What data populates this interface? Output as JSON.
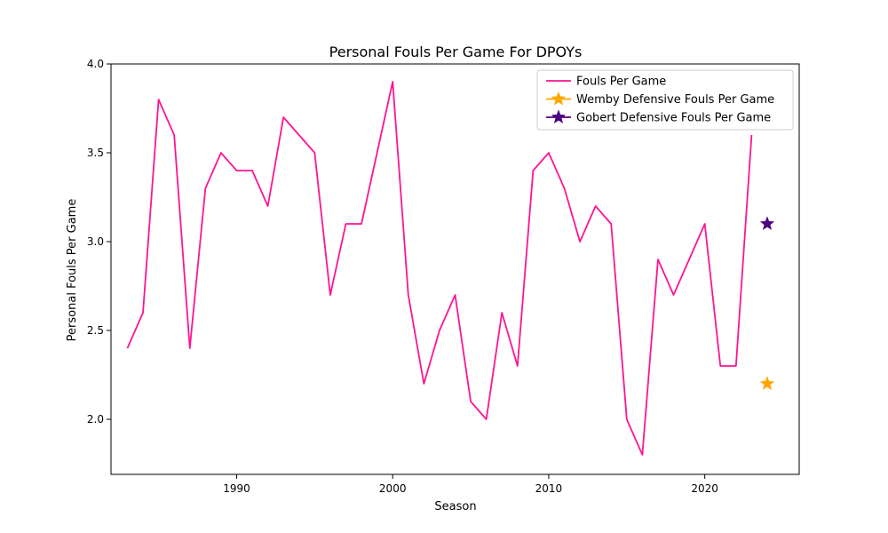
{
  "chart_data": {
    "type": "line",
    "title": "Personal Fouls Per Game For DPOYs",
    "xlabel": "Season",
    "ylabel": "Personal Fouls Per Game",
    "xlim": [
      1981.95,
      2026.05
    ],
    "ylim": [
      1.69,
      4.0
    ],
    "xticks": [
      1990,
      2000,
      2010,
      2020
    ],
    "yticks": [
      2.0,
      2.5,
      3.0,
      3.5,
      4.0
    ],
    "grid": false,
    "legend_position": "top-right",
    "colors": {
      "line": "#ff1493",
      "wemby": "#ffa500",
      "gobert": "#4b0082"
    },
    "series": [
      {
        "name": "Fouls Per Game",
        "x": [
          1983,
          1984,
          1985,
          1986,
          1987,
          1988,
          1989,
          1990,
          1991,
          1992,
          1993,
          1994,
          1995,
          1996,
          1997,
          1998,
          1999,
          2000,
          2001,
          2002,
          2003,
          2004,
          2005,
          2006,
          2007,
          2008,
          2009,
          2010,
          2011,
          2012,
          2013,
          2014,
          2015,
          2016,
          2017,
          2018,
          2019,
          2020,
          2021,
          2022,
          2023
        ],
        "y": [
          2.4,
          2.6,
          3.8,
          3.6,
          2.4,
          3.3,
          3.5,
          3.4,
          3.4,
          3.2,
          3.7,
          3.6,
          3.5,
          2.7,
          3.1,
          3.1,
          3.5,
          3.9,
          2.7,
          2.2,
          2.5,
          2.7,
          2.1,
          2.0,
          2.6,
          2.3,
          3.4,
          3.5,
          3.3,
          3.0,
          3.2,
          3.1,
          2.0,
          1.8,
          2.9,
          2.7,
          2.9,
          3.1,
          2.3,
          2.3,
          3.6
        ]
      },
      {
        "name": "Wemby Defensive Fouls Per Game",
        "x": [
          2024
        ],
        "y": [
          2.2
        ]
      },
      {
        "name": "Gobert Defensive Fouls Per Game",
        "x": [
          2024
        ],
        "y": [
          3.1
        ]
      }
    ]
  }
}
